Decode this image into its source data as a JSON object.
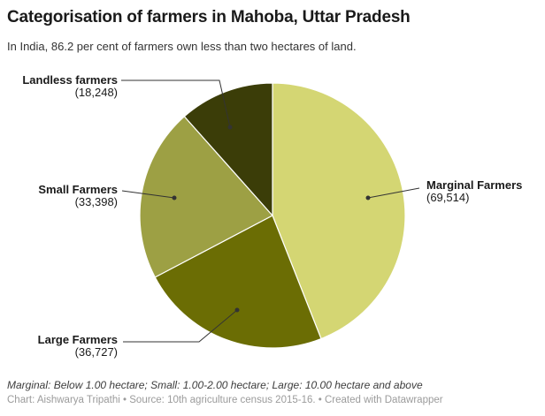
{
  "header": {
    "title": "Categorisation of farmers in Mahoba, Uttar Pradesh",
    "subtitle": "In India, 86.2 per cent of farmers own less than two hectares of land."
  },
  "chart_data": {
    "type": "pie",
    "title": "Categorisation of farmers in Mahoba, Uttar Pradesh",
    "start_angle_deg": 0,
    "direction": "clockwise",
    "categories": [
      "Marginal Farmers",
      "Large Farmers",
      "Small Farmers",
      "Landless farmers"
    ],
    "values": [
      69514,
      36727,
      33398,
      18248
    ],
    "slices": [
      {
        "label": "Marginal Farmers",
        "value": 69514,
        "value_label": "(69,514)",
        "color": "#d4d673"
      },
      {
        "label": "Large Farmers",
        "value": 36727,
        "value_label": "(36,727)",
        "color": "#6b6d04"
      },
      {
        "label": "Small Farmers",
        "value": 33398,
        "value_label": "(33,398)",
        "color": "#9da044"
      },
      {
        "label": "Landless farmers",
        "value": 18248,
        "value_label": "(18,248)",
        "color": "#3b3d08"
      }
    ],
    "colors": {
      "connector_line": "#333333",
      "slice_separator": "#ffffff",
      "label_text": "#1a1a1a"
    }
  },
  "footer": {
    "note": "Marginal: Below 1.00 hectare; Small: 1.00-2.00 hectare; Large: 10.00 hectare and above",
    "credit": "Chart: Aishwarya Tripathi • Source: 10th agriculture census 2015-16. • Created with Datawrapper"
  }
}
